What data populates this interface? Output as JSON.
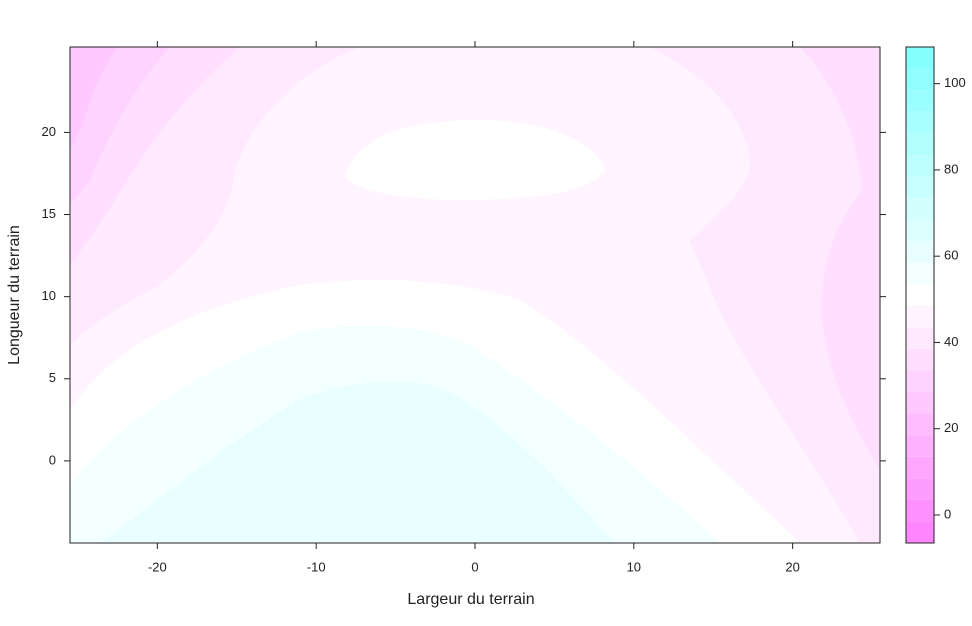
{
  "chart_data": {
    "type": "contour",
    "x_label": "Largeur du terrain",
    "y_label": "Longueur du terrain",
    "xlim": [
      -25.5,
      25.5
    ],
    "xticks": [
      -20,
      -10,
      0,
      10,
      20
    ],
    "ylim": [
      -5,
      25.2
    ],
    "yticks": [
      0,
      5,
      10,
      15,
      20
    ],
    "zlim": [
      -6.5,
      108.5
    ],
    "zticks": [
      0,
      20,
      40,
      60,
      80,
      100
    ],
    "levels": [
      -6.5,
      -1.5,
      3.5,
      8.5,
      13.5,
      18.5,
      23.5,
      28.5,
      33.5,
      38.5,
      43.5,
      48.5,
      53.5,
      58.5,
      63.5,
      68.5,
      73.5,
      78.5,
      83.5,
      88.5,
      93.5,
      98.5,
      103.5,
      108.5
    ],
    "palette": [
      "#ff80ff",
      "#ffffff",
      "#80ffff"
    ]
  }
}
